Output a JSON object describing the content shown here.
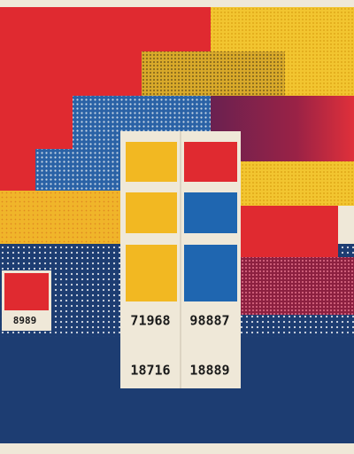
{
  "poster": {
    "side_card": {
      "number": "8989"
    },
    "center_card": {
      "rows": [
        [
          "71968",
          "98887"
        ],
        [
          "18716",
          "18889"
        ]
      ]
    }
  }
}
